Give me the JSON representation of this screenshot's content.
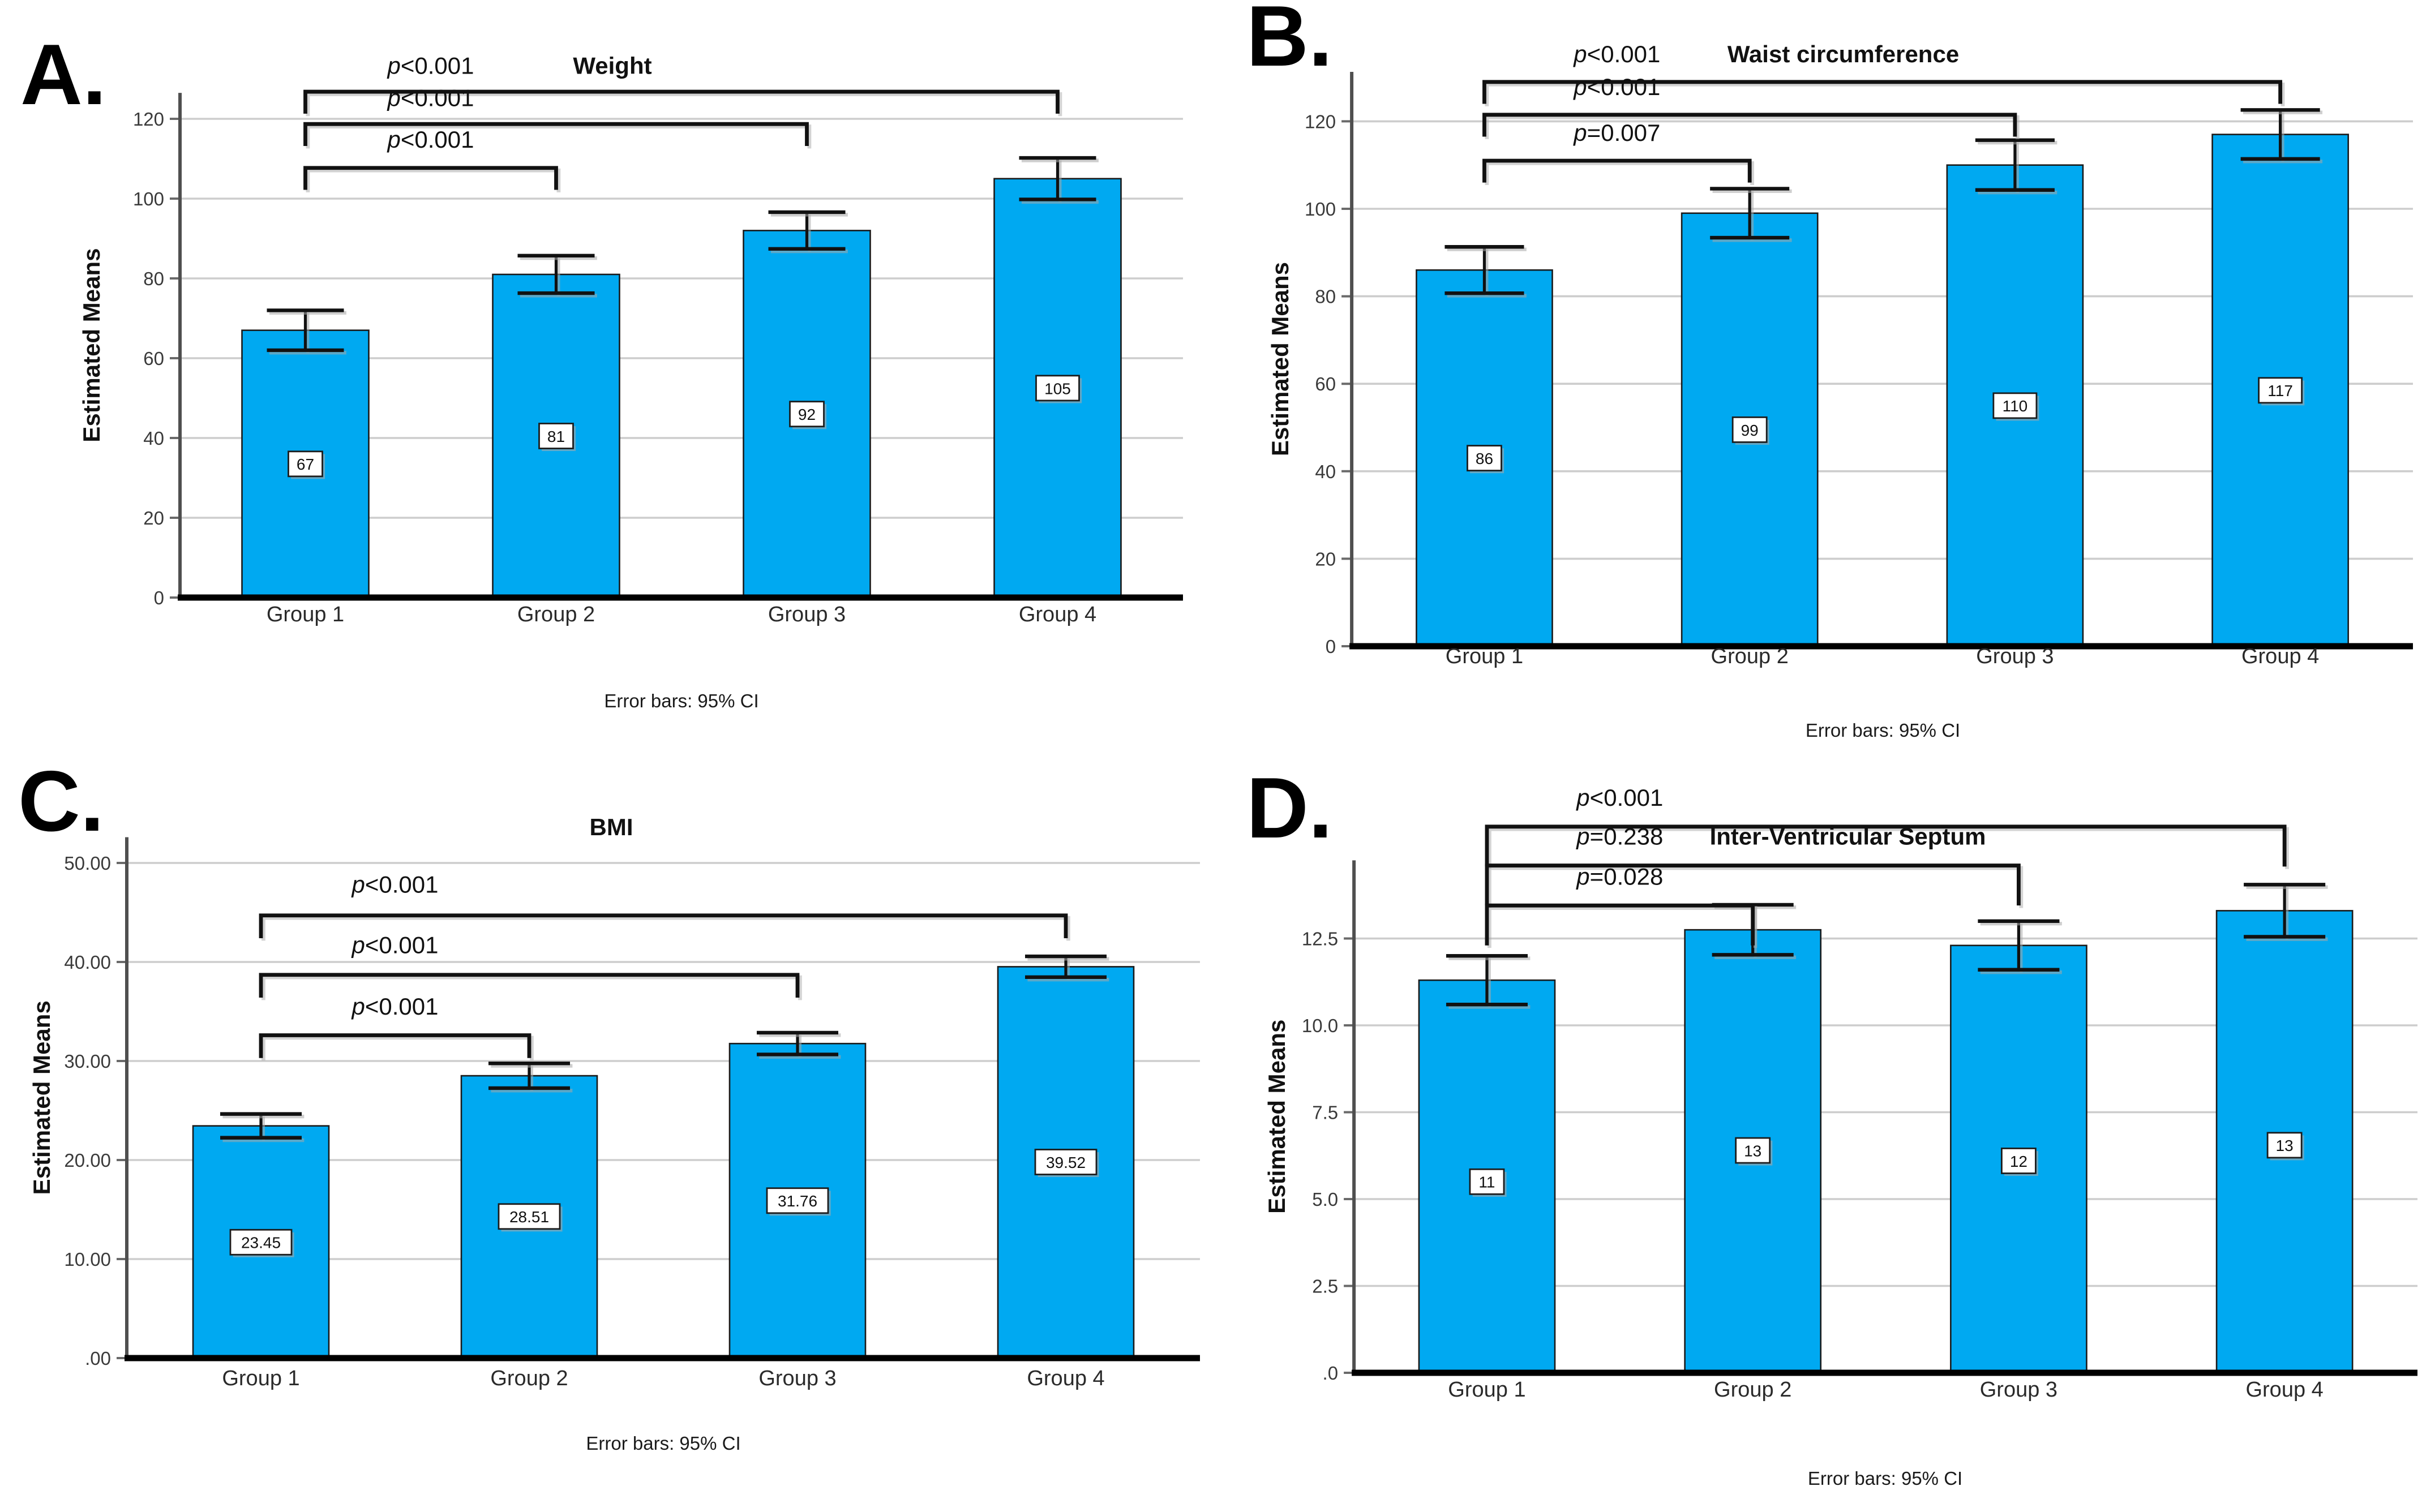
{
  "chart_data": [
    {
      "type": "bar",
      "panel_label": "A.",
      "title": "Weight",
      "ylabel": "Estimated Means",
      "xlabel": "",
      "categories": [
        "Group 1",
        "Group 2",
        "Group 3",
        "Group 4"
      ],
      "values": [
        67,
        81,
        92,
        105
      ],
      "bar_labels": [
        "67",
        "81",
        "92",
        "105"
      ],
      "bar_label_y": [
        33.5,
        40.5,
        46,
        52.5
      ],
      "ci_half_width": [
        5.0,
        4.7,
        4.6,
        5.2
      ],
      "yticks": [
        {
          "v": 0,
          "label": "0"
        },
        {
          "v": 20,
          "label": "20"
        },
        {
          "v": 40,
          "label": "40"
        },
        {
          "v": 60,
          "label": "60"
        },
        {
          "v": 80,
          "label": "80"
        },
        {
          "v": 100,
          "label": "100"
        },
        {
          "v": 120,
          "label": "120"
        }
      ],
      "ylim": [
        0,
        134
      ],
      "grid": true,
      "legend_position": "none",
      "significance_brackets": [
        {
          "from": "Group 1",
          "to": "Group 4",
          "from_index": 0,
          "to_index": 3,
          "y": 126.8,
          "label": "p<0.001",
          "label_y": 131.3
        },
        {
          "from": "Group 1",
          "to": "Group 3",
          "from_index": 0,
          "to_index": 2,
          "y": 118.7,
          "label": "p<0.001",
          "label_y": 123.2
        },
        {
          "from": "Group 1",
          "to": "Group 2",
          "from_index": 0,
          "to_index": 1,
          "y": 107.7,
          "label": "p<0.001",
          "label_y": 112.8
        }
      ],
      "bracket_leg_drop": 5.5,
      "caption": "Error bars: 95% CI",
      "bar_color": "#00A9F1",
      "bar_border_color": "#1a1a1a"
    },
    {
      "type": "bar",
      "panel_label": "B.",
      "title": "Waist circumference",
      "ylabel": "Estimated Means",
      "xlabel": "",
      "categories": [
        "Group 1",
        "Group 2",
        "Group 3",
        "Group 4"
      ],
      "values": [
        86,
        99,
        110,
        117
      ],
      "bar_labels": [
        "86",
        "99",
        "110",
        "117"
      ],
      "bar_label_y": [
        43,
        49.5,
        55,
        58.5
      ],
      "ci_half_width": [
        5.3,
        5.6,
        5.7,
        5.6
      ],
      "yticks": [
        {
          "v": 0,
          "label": "0"
        },
        {
          "v": 20,
          "label": "20"
        },
        {
          "v": 40,
          "label": "40"
        },
        {
          "v": 60,
          "label": "60"
        },
        {
          "v": 80,
          "label": "80"
        },
        {
          "v": 100,
          "label": "100"
        },
        {
          "v": 120,
          "label": "120"
        }
      ],
      "ylim": [
        0,
        138
      ],
      "grid": true,
      "legend_position": "none",
      "significance_brackets": [
        {
          "from": "Group 1",
          "to": "Group 4",
          "from_index": 0,
          "to_index": 3,
          "y": 129.0,
          "label": "p<0.001",
          "label_y": 133.5
        },
        {
          "from": "Group 1",
          "to": "Group 3",
          "from_index": 0,
          "to_index": 2,
          "y": 121.5,
          "label": "p<0.001",
          "label_y": 126.0
        },
        {
          "from": "Group 1",
          "to": "Group 2",
          "from_index": 0,
          "to_index": 1,
          "y": 111.0,
          "label": "p=0.007",
          "label_y": 115.5
        }
      ],
      "bracket_leg_drop": 5.0,
      "caption": "Error bars: 95% CI",
      "bar_color": "#00A9F1",
      "bar_border_color": "#1a1a1a"
    },
    {
      "type": "bar",
      "panel_label": "C.",
      "title": "BMI",
      "ylabel": "Estimated Means",
      "xlabel": "",
      "categories": [
        "Group 1",
        "Group 2",
        "Group 3",
        "Group 4"
      ],
      "values": [
        23.45,
        28.51,
        31.76,
        39.52
      ],
      "bar_labels": [
        "23.45",
        "28.51",
        "31.76",
        "39.52"
      ],
      "bar_label_y": [
        11.7,
        14.3,
        15.9,
        19.8
      ],
      "ci_half_width": [
        1.2,
        1.25,
        1.1,
        1.05
      ],
      "yticks": [
        {
          "v": 0,
          "label": ".00"
        },
        {
          "v": 10,
          "label": "10.00"
        },
        {
          "v": 20,
          "label": "20.00"
        },
        {
          "v": 30,
          "label": "30.00"
        },
        {
          "v": 40,
          "label": "40.00"
        },
        {
          "v": 50,
          "label": "50.00"
        }
      ],
      "ylim": [
        0,
        53.5
      ],
      "grid": true,
      "legend_position": "none",
      "significance_brackets": [
        {
          "from": "Group 1",
          "to": "Group 4",
          "from_index": 0,
          "to_index": 3,
          "y": 44.7,
          "label": "p<0.001",
          "label_y": 47.0
        },
        {
          "from": "Group 1",
          "to": "Group 3",
          "from_index": 0,
          "to_index": 2,
          "y": 38.7,
          "label": "p<0.001",
          "label_y": 40.9
        },
        {
          "from": "Group 1",
          "to": "Group 2",
          "from_index": 0,
          "to_index": 1,
          "y": 32.6,
          "label": "p<0.001",
          "label_y": 34.7
        }
      ],
      "bracket_leg_drop": 2.3,
      "caption": "Error bars: 95% CI",
      "bar_color": "#00A9F1",
      "bar_border_color": "#1a1a1a"
    },
    {
      "type": "bar",
      "panel_label": "D.",
      "title": "Inter-Ventricular Septum",
      "ylabel": "Estimated Means",
      "xlabel": "",
      "categories": [
        "Group 1",
        "Group 2",
        "Group 3",
        "Group 4"
      ],
      "values": [
        11.3,
        12.75,
        12.3,
        13.3
      ],
      "bar_labels": [
        "11",
        "13",
        "12",
        "13"
      ],
      "bar_label_y": [
        5.5,
        6.4,
        6.1,
        6.55
      ],
      "ci_half_width": [
        0.7,
        0.72,
        0.7,
        0.75
      ],
      "yticks": [
        {
          "v": 0,
          "label": ".0"
        },
        {
          "v": 2.5,
          "label": "2.5"
        },
        {
          "v": 5,
          "label": "5.0"
        },
        {
          "v": 7.5,
          "label": "7.5"
        },
        {
          "v": 10,
          "label": "10.0"
        },
        {
          "v": 12.5,
          "label": "12.5"
        }
      ],
      "ylim": [
        0,
        16.6
      ],
      "grid": true,
      "legend_position": "none",
      "significance_brackets": [
        {
          "from": "Group 1",
          "to": "Group 4",
          "from_index": 0,
          "to_index": 3,
          "y": 15.72,
          "label": "p<0.001",
          "label_y": 16.32
        },
        {
          "from": "Group 1",
          "to": "Group 3",
          "from_index": 0,
          "to_index": 2,
          "y": 14.6,
          "label": "p=0.238",
          "label_y": 15.2
        },
        {
          "from": "Group 1",
          "to": "Group 2",
          "from_index": 0,
          "to_index": 1,
          "y": 13.45,
          "label": "p=0.028",
          "label_y": 14.05
        }
      ],
      "bracket_leg_drop": 1.15,
      "caption": "Error bars: 95% CI",
      "bar_color": "#00A9F1",
      "bar_border_color": "#1a1a1a"
    }
  ]
}
